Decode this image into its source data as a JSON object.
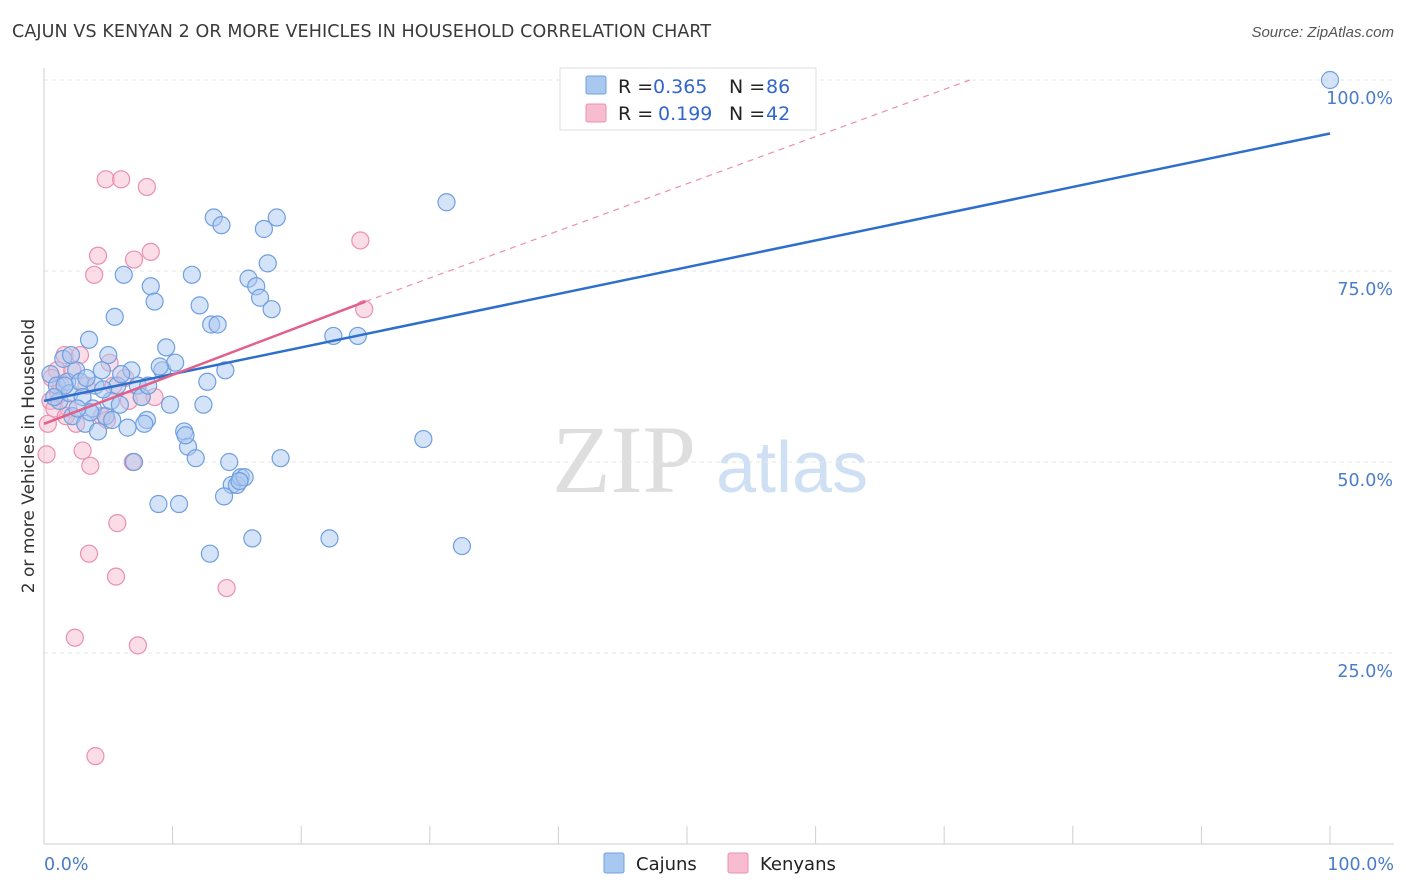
{
  "chart_data": {
    "type": "scatter",
    "title": "CAJUN VS KENYAN 2 OR MORE VEHICLES IN HOUSEHOLD CORRELATION CHART",
    "source": "Source: ZipAtlas.com",
    "xlabel": "",
    "ylabel": "2 or more Vehicles in Household",
    "xlim": [
      0,
      100
    ],
    "ylim": [
      0,
      100
    ],
    "x_tick_labels": [
      "0.0%",
      "100.0%"
    ],
    "y_ticks": [
      {
        "value": 25,
        "label": "25.0%"
      },
      {
        "value": 50,
        "label": "50.0%"
      },
      {
        "value": 75,
        "label": "75.0%"
      },
      {
        "value": 100,
        "label": "100.0%"
      }
    ],
    "watermark": {
      "zip": "ZIP",
      "atlas": "atlas"
    },
    "legend": [
      {
        "r_label": "R =",
        "r_value": "0.365",
        "n_label": "N =",
        "n_value": "86"
      },
      {
        "r_label": "R =",
        "r_value": "0.199",
        "n_label": "N =",
        "n_value": "42"
      }
    ],
    "colors": {
      "cajuns_fill": "#a9c8f0",
      "cajuns_stroke": "#6f9fe0",
      "cajuns_line": "#2e6fcc",
      "kenyans_fill": "#f7bcd0",
      "kenyans_stroke": "#ec8fae",
      "kenyans_line": "#e2608a",
      "tick_label": "#4a7cc8"
    },
    "series": [
      {
        "name": "Cajuns",
        "trend": {
          "x0": 0,
          "y0": 58.0,
          "x1": 100,
          "y1": 93.0
        },
        "points": [
          [
            0.5,
            61.5
          ],
          [
            1.0,
            60.0
          ],
          [
            1.2,
            58.0
          ],
          [
            1.5,
            63.5
          ],
          [
            1.8,
            60.5
          ],
          [
            2.0,
            59.0
          ],
          [
            2.2,
            56.0
          ],
          [
            2.5,
            62.0
          ],
          [
            2.8,
            60.5
          ],
          [
            3.0,
            58.5
          ],
          [
            3.2,
            55.0
          ],
          [
            3.5,
            66.0
          ],
          [
            3.8,
            57.0
          ],
          [
            4.0,
            60.0
          ],
          [
            4.2,
            54.0
          ],
          [
            4.5,
            62.0
          ],
          [
            4.8,
            56.0
          ],
          [
            5.0,
            64.0
          ],
          [
            5.2,
            58.0
          ],
          [
            5.5,
            69.0
          ],
          [
            5.7,
            60.0
          ],
          [
            5.9,
            57.5
          ],
          [
            6.2,
            74.5
          ],
          [
            6.5,
            54.5
          ],
          [
            6.8,
            62.0
          ],
          [
            7.0,
            50.0
          ],
          [
            7.3,
            60.0
          ],
          [
            7.6,
            58.5
          ],
          [
            8.0,
            55.5
          ],
          [
            8.3,
            73.0
          ],
          [
            8.6,
            71.0
          ],
          [
            8.9,
            44.5
          ],
          [
            9.2,
            62.0
          ],
          [
            9.5,
            65.0
          ],
          [
            9.8,
            57.5
          ],
          [
            10.2,
            63.0
          ],
          [
            10.5,
            44.5
          ],
          [
            10.9,
            54.0
          ],
          [
            11.2,
            52.0
          ],
          [
            11.5,
            74.5
          ],
          [
            11.8,
            50.5
          ],
          [
            12.1,
            70.5
          ],
          [
            12.4,
            57.5
          ],
          [
            12.7,
            60.5
          ],
          [
            13.0,
            68.0
          ],
          [
            13.2,
            82.0
          ],
          [
            13.5,
            68.0
          ],
          [
            13.8,
            81.0
          ],
          [
            14.1,
            62.0
          ],
          [
            14.4,
            50.0
          ],
          [
            14.6,
            47.0
          ],
          [
            15.0,
            47.0
          ],
          [
            15.3,
            48.0
          ],
          [
            15.6,
            48.0
          ],
          [
            15.9,
            74.0
          ],
          [
            16.2,
            40.0
          ],
          [
            16.5,
            73.0
          ],
          [
            16.8,
            71.5
          ],
          [
            17.1,
            80.5
          ],
          [
            17.4,
            76.0
          ],
          [
            17.7,
            70.0
          ],
          [
            18.1,
            82.0
          ],
          [
            18.4,
            50.5
          ],
          [
            15.2,
            47.5
          ],
          [
            14.0,
            45.5
          ],
          [
            11.0,
            53.5
          ],
          [
            9.0,
            62.5
          ],
          [
            7.8,
            55.0
          ],
          [
            6.0,
            61.5
          ],
          [
            3.6,
            56.5
          ],
          [
            2.6,
            57.0
          ],
          [
            1.6,
            60.0
          ],
          [
            0.8,
            58.5
          ],
          [
            4.6,
            59.5
          ],
          [
            22.2,
            40.0
          ],
          [
            22.5,
            66.5
          ],
          [
            24.4,
            66.5
          ],
          [
            29.5,
            53.0
          ],
          [
            31.3,
            84.0
          ],
          [
            32.5,
            39.0
          ],
          [
            100.0,
            100.0
          ],
          [
            12.9,
            38.0
          ],
          [
            5.3,
            55.5
          ],
          [
            2.1,
            64.0
          ],
          [
            3.3,
            61.0
          ],
          [
            8.1,
            60.0
          ]
        ]
      },
      {
        "name": "Kenyans",
        "trend": {
          "x0": 0,
          "y0": 55.0,
          "x1": 25,
          "y1": 71.0
        },
        "trend_ext": {
          "x0": 25,
          "y0": 71.0,
          "x1": 72,
          "y1": 100.0
        },
        "points": [
          [
            0.2,
            51.0
          ],
          [
            0.5,
            58.0
          ],
          [
            0.8,
            57.0
          ],
          [
            1.0,
            62.0
          ],
          [
            1.3,
            60.0
          ],
          [
            1.6,
            64.0
          ],
          [
            1.9,
            57.0
          ],
          [
            2.2,
            62.0
          ],
          [
            2.5,
            55.0
          ],
          [
            2.8,
            64.0
          ],
          [
            3.0,
            51.5
          ],
          [
            3.3,
            60.0
          ],
          [
            3.6,
            49.5
          ],
          [
            3.9,
            74.5
          ],
          [
            4.2,
            77.0
          ],
          [
            4.5,
            56.0
          ],
          [
            4.8,
            87.0
          ],
          [
            5.1,
            63.0
          ],
          [
            5.4,
            60.0
          ],
          [
            5.7,
            42.0
          ],
          [
            6.0,
            87.0
          ],
          [
            6.3,
            61.0
          ],
          [
            6.6,
            58.0
          ],
          [
            7.0,
            76.5
          ],
          [
            7.3,
            26.0
          ],
          [
            7.6,
            58.5
          ],
          [
            8.0,
            86.0
          ],
          [
            8.3,
            77.5
          ],
          [
            8.6,
            58.5
          ],
          [
            4.0,
            11.5
          ],
          [
            2.4,
            27.0
          ],
          [
            3.5,
            38.0
          ],
          [
            5.6,
            35.0
          ],
          [
            14.2,
            33.5
          ],
          [
            24.6,
            79.0
          ],
          [
            24.9,
            70.0
          ],
          [
            0.3,
            55.0
          ],
          [
            0.6,
            61.0
          ],
          [
            1.1,
            59.0
          ],
          [
            1.7,
            56.0
          ],
          [
            4.9,
            55.5
          ],
          [
            6.9,
            50.0
          ]
        ]
      }
    ],
    "bottom_legend": [
      "Cajuns",
      "Kenyans"
    ]
  }
}
